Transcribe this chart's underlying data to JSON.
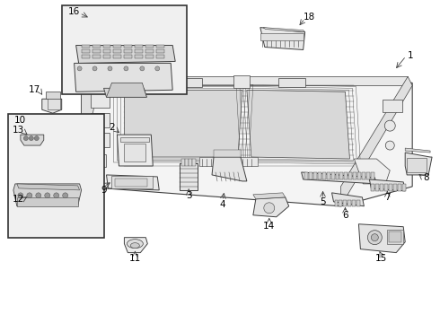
{
  "background_color": "#ffffff",
  "line_color": "#404040",
  "label_color": "#000000",
  "fig_width": 4.9,
  "fig_height": 3.6,
  "dpi": 100,
  "label_fontsize": 7.5
}
